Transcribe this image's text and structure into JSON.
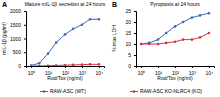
{
  "chart_data": [
    {
      "type": "line",
      "label": "A",
      "title": "Mature mIL-1β secretion at 24 hours",
      "x_label": "Rod/Tox (ng/ml)",
      "y_label": "mIL-1β (pg/ml)",
      "log": "x",
      "legend": "bottom",
      "marker": "circle",
      "x": [
        1,
        3,
        10,
        30,
        100,
        300,
        1000,
        3000,
        10000
      ],
      "xlim": [
        0.5,
        20000
      ],
      "xticks": [
        {
          "value": 1,
          "label": "10⁰"
        },
        {
          "value": 10,
          "label": "10¹"
        },
        {
          "value": 100,
          "label": "10²"
        },
        {
          "value": 1000,
          "label": "10³"
        },
        {
          "value": 10000,
          "label": "10⁴"
        }
      ],
      "ylim": [
        0,
        2000
      ],
      "yticks": [
        0,
        500,
        1000,
        1500,
        2000
      ],
      "series": [
        {
          "name": "RAW-ASC (WT)",
          "color": "#3a6fb0",
          "values": [
            20,
            100,
            450,
            850,
            1150,
            1350,
            1500,
            1700,
            1700
          ]
        },
        {
          "name": "RAW-ASC KO-NLRC4 (KO)",
          "color": "#d0383f",
          "values": [
            0,
            0,
            10,
            20,
            30,
            40,
            50,
            60,
            60
          ]
        }
      ]
    },
    {
      "type": "line",
      "label": "B",
      "title": "Pyroptosis at 24 hours",
      "x_label": "Rod/Tox (ng/ml)",
      "y_label": "% max LDH",
      "log": "x",
      "marker": "circle",
      "x": [
        1,
        3,
        10,
        30,
        100,
        300,
        1000,
        3000,
        10000
      ],
      "xlim": [
        0.5,
        20000
      ],
      "xticks": [
        {
          "value": 1,
          "label": "10⁰"
        },
        {
          "value": 10,
          "label": "10¹"
        },
        {
          "value": 100,
          "label": "10²"
        },
        {
          "value": 1000,
          "label": "10³"
        },
        {
          "value": 10000,
          "label": "10⁴"
        }
      ],
      "ylim": [
        0,
        25
      ],
      "yticks": [
        0,
        5,
        10,
        15,
        20,
        25
      ],
      "series": [
        {
          "color": "#3a6fb0",
          "values": [
            10,
            10.5,
            12,
            15,
            18,
            20,
            22,
            23,
            24
          ]
        },
        {
          "color": "#d0383f",
          "values": [
            10,
            10,
            10,
            10.5,
            11,
            12,
            12,
            13,
            15
          ]
        }
      ]
    }
  ]
}
